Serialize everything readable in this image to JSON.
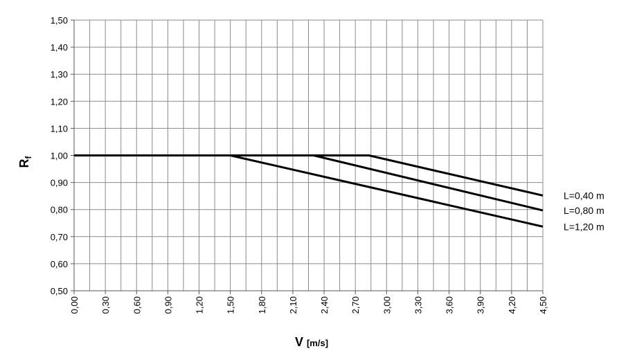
{
  "chart_data": {
    "type": "line",
    "title": "",
    "xlabel": {
      "main": "V",
      "unit": "[m/s]"
    },
    "ylabel": {
      "main": "R",
      "sub": "f"
    },
    "xlim": [
      0,
      4.5
    ],
    "ylim": [
      0.5,
      1.5
    ],
    "x_ticks": [
      "0,00",
      "0,30",
      "0,60",
      "0,90",
      "1,20",
      "1,50",
      "1,80",
      "2,10",
      "2,40",
      "2,70",
      "3,00",
      "3,30",
      "3,60",
      "3,90",
      "4,20",
      "4,50"
    ],
    "y_ticks": [
      "0,50",
      "0,60",
      "0,70",
      "0,80",
      "0,90",
      "1,00",
      "1,10",
      "1,20",
      "1,30",
      "1,40",
      "1,50"
    ],
    "x_minor_step": 0.15,
    "y_step": 0.1,
    "grid": true,
    "legend_placement": "right, at line ends",
    "series": [
      {
        "name": "L=0,40 m",
        "points": [
          [
            0.0,
            1.0
          ],
          [
            2.83,
            1.0
          ],
          [
            4.5,
            0.852
          ]
        ]
      },
      {
        "name": "L=0,80 m",
        "points": [
          [
            0.0,
            1.0
          ],
          [
            2.3,
            1.0
          ],
          [
            4.5,
            0.797
          ]
        ]
      },
      {
        "name": "L=1,20 m",
        "points": [
          [
            0.0,
            1.0
          ],
          [
            1.5,
            1.0
          ],
          [
            4.5,
            0.737
          ]
        ]
      }
    ],
    "line_color": "#000000",
    "grid_color": "#8a8a8a"
  }
}
